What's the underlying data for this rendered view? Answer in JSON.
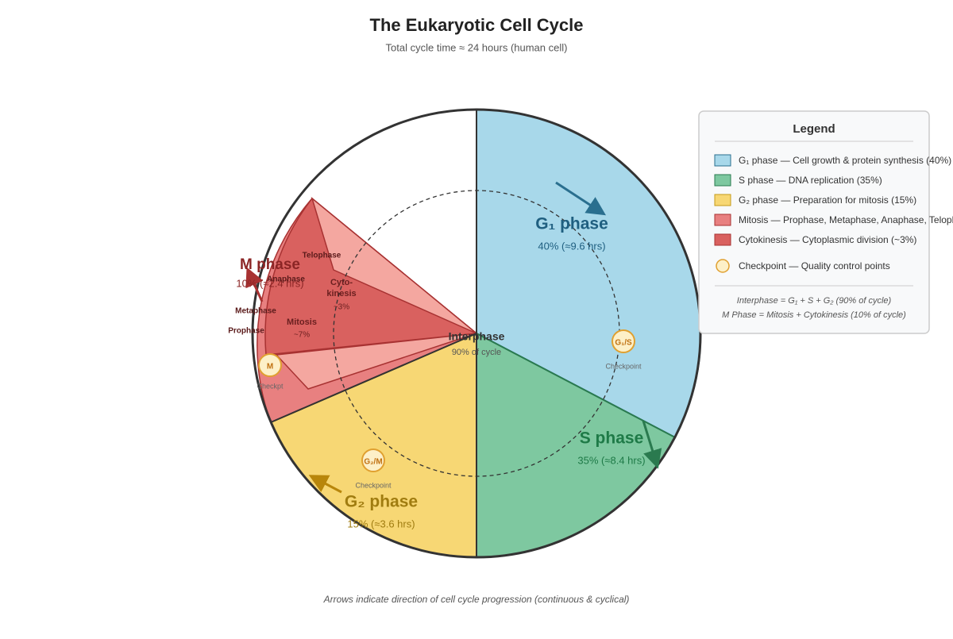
{
  "header": {
    "title": "The Eukaryotic Cell Cycle",
    "subtitle": "Total cycle time ≈ 24 hours (human cell)"
  },
  "phases": [
    {
      "label": "G₁ phase",
      "detail": "40% (≈9.6 hrs)"
    },
    {
      "label": "S phase",
      "detail": "35% (≈8.4 hrs)"
    },
    {
      "label": "G₂ phase",
      "detail": "15% (≈3.6 hrs)"
    },
    {
      "label": "M phase",
      "detail": "10% (≈2.4 hrs)"
    }
  ],
  "center": {
    "label": "Interphase",
    "detail": "90% of cycle"
  },
  "m_parts": {
    "telophase": "Telophase",
    "anaphase": "Anaphase",
    "metaphase": "Metaphase",
    "prophase": "Prophase",
    "cytokinesis": "Cyto-",
    "cytokinesis2": "kinesis",
    "cytokinesis_pct": "~3%",
    "mitosis": "Mitosis",
    "mitosis_pct": "~7%"
  },
  "checkpoints": [
    {
      "label": "G₁/S",
      "caption": "Checkpoint"
    },
    {
      "label": "G₂/M",
      "caption": "Checkpoint"
    },
    {
      "label": "M",
      "caption": "Checkpt"
    }
  ],
  "legend": {
    "title": "Legend",
    "items": [
      "G₁ phase — Cell growth & protein synthesis (40%)",
      "S phase — DNA replication (35%)",
      "G₂ phase — Preparation for mitosis (15%)",
      "Mitosis — Prophase, Metaphase, Anaphase, Telophase",
      "Cytokinesis — Cytoplasmic division (~3%)",
      "Checkpoint — Quality control points"
    ],
    "notes": [
      "Interphase = G₁ + S + G₂ (90% of cycle)",
      "M Phase = Mitosis + Cytokinesis (10% of cycle)"
    ]
  },
  "footer": "Arrows indicate direction of cell cycle progression (continuous & cyclical)"
}
